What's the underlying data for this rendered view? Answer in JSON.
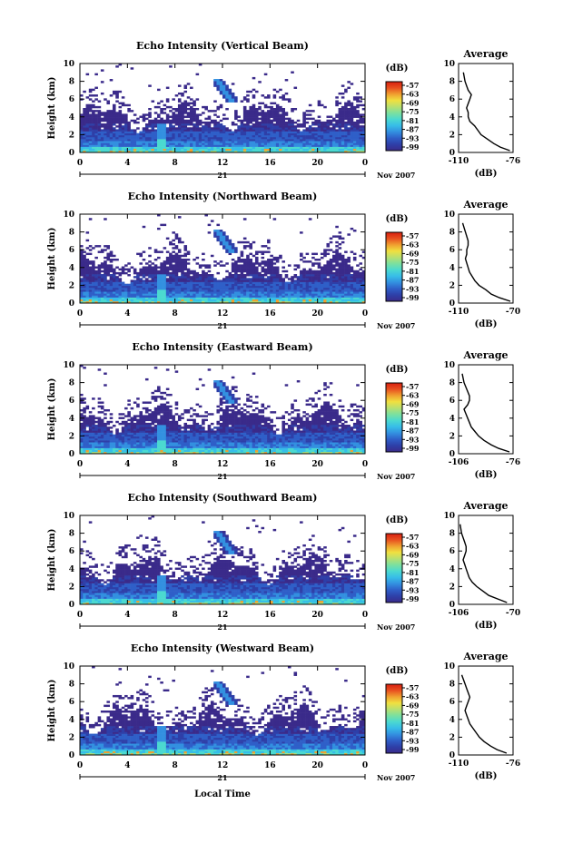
{
  "figure": {
    "x_axis_title": "Local Time",
    "day_label": "21",
    "month_label": "Nov 2007",
    "y_axis_title": "Height (km)",
    "unit_label": "(dB)",
    "average_title": "Average",
    "average_xlabel": "(dB)"
  },
  "colors": {
    "background": "#ffffff",
    "colormap": [
      "#3a2a8a",
      "#2e3fa8",
      "#2f5fc8",
      "#3390e0",
      "#37bde8",
      "#4bd9d0",
      "#7be0a0",
      "#b8e070",
      "#f0e040",
      "#f0a030",
      "#e85020",
      "#d82010"
    ]
  },
  "chart_data": [
    {
      "type": "heatmap",
      "title": "Echo Intensity (Vertical Beam)",
      "xlabel": "",
      "ylabel": "Height (km)",
      "xlim": [
        0,
        24
      ],
      "ylim": [
        0,
        10
      ],
      "x_ticks": [
        "0",
        "4",
        "8",
        "12",
        "16",
        "20",
        "0"
      ],
      "y_ticks": [
        "0",
        "2",
        "4",
        "6",
        "8",
        "10"
      ],
      "colorbar_ticks": [
        "-57",
        "-63",
        "-69",
        "-75",
        "-81",
        "-87",
        "-93",
        "-99"
      ],
      "colorbar_unit": "(dB)",
      "profile": {
        "title": "Average",
        "xlabel": "(dB)",
        "x_ticks": [
          "-110",
          "-76"
        ],
        "xlim": [
          -110,
          -76
        ],
        "height_km": [
          0.2,
          0.6,
          1.0,
          1.5,
          2.0,
          2.5,
          3.0,
          3.5,
          4.0,
          4.5,
          5.0,
          5.5,
          6.0,
          6.5,
          7.0,
          7.5,
          8.0,
          9.0
        ],
        "db": [
          -78,
          -84,
          -88,
          -92,
          -96,
          -98,
          -100,
          -103,
          -104,
          -104,
          -105,
          -104,
          -103,
          -102,
          -104,
          -105,
          -106,
          -107
        ]
      }
    },
    {
      "type": "heatmap",
      "title": "Echo Intensity (Northward Beam)",
      "xlabel": "",
      "ylabel": "Height (km)",
      "xlim": [
        0,
        24
      ],
      "ylim": [
        0,
        10
      ],
      "x_ticks": [
        "0",
        "4",
        "8",
        "12",
        "16",
        "20",
        "0"
      ],
      "y_ticks": [
        "0",
        "2",
        "4",
        "6",
        "8",
        "10"
      ],
      "colorbar_ticks": [
        "-57",
        "-63",
        "-69",
        "-75",
        "-81",
        "-87",
        "-93",
        "-99"
      ],
      "colorbar_unit": "(dB)",
      "profile": {
        "title": "Average",
        "xlabel": "(dB)",
        "x_ticks": [
          "-110",
          "-70"
        ],
        "xlim": [
          -110,
          -70
        ],
        "height_km": [
          0.2,
          0.6,
          1.0,
          1.5,
          2.0,
          2.5,
          3.0,
          3.5,
          4.0,
          4.5,
          5.0,
          5.5,
          6.0,
          6.5,
          7.0,
          7.5,
          8.0,
          9.0
        ],
        "db": [
          -72,
          -80,
          -86,
          -90,
          -95,
          -98,
          -100,
          -102,
          -103,
          -104,
          -105,
          -104,
          -104,
          -103,
          -103,
          -104,
          -105,
          -107
        ]
      }
    },
    {
      "type": "heatmap",
      "title": "Echo Intensity (Eastward Beam)",
      "xlabel": "",
      "ylabel": "Height (km)",
      "xlim": [
        0,
        24
      ],
      "ylim": [
        0,
        10
      ],
      "x_ticks": [
        "0",
        "4",
        "8",
        "12",
        "16",
        "20",
        "0"
      ],
      "y_ticks": [
        "0",
        "2",
        "4",
        "6",
        "8",
        "10"
      ],
      "colorbar_ticks": [
        "-57",
        "-63",
        "-69",
        "-75",
        "-81",
        "-87",
        "-93",
        "-99"
      ],
      "colorbar_unit": "(dB)",
      "profile": {
        "title": "Average",
        "xlabel": "(dB)",
        "x_ticks": [
          "-106",
          "-76"
        ],
        "xlim": [
          -106,
          -76
        ],
        "height_km": [
          0.2,
          0.6,
          1.0,
          1.5,
          2.0,
          2.5,
          3.0,
          3.5,
          4.0,
          4.5,
          5.0,
          5.5,
          6.0,
          6.5,
          7.0,
          7.5,
          8.0,
          9.0
        ],
        "db": [
          -78,
          -84,
          -88,
          -92,
          -95,
          -97,
          -99,
          -100,
          -101,
          -102,
          -103,
          -101,
          -100,
          -100,
          -101,
          -102,
          -103,
          -104
        ]
      }
    },
    {
      "type": "heatmap",
      "title": "Echo Intensity (Southward Beam)",
      "xlabel": "",
      "ylabel": "Height (km)",
      "xlim": [
        0,
        24
      ],
      "ylim": [
        0,
        10
      ],
      "x_ticks": [
        "0",
        "4",
        "8",
        "12",
        "16",
        "20",
        "0"
      ],
      "y_ticks": [
        "0",
        "2",
        "4",
        "6",
        "8",
        "10"
      ],
      "colorbar_ticks": [
        "-57",
        "-63",
        "-69",
        "-75",
        "-81",
        "-87",
        "-93",
        "-99"
      ],
      "colorbar_unit": "(dB)",
      "profile": {
        "title": "Average",
        "xlabel": "(dB)",
        "x_ticks": [
          "-106",
          "-70"
        ],
        "xlim": [
          -106,
          -70
        ],
        "height_km": [
          0.2,
          0.6,
          1.0,
          1.5,
          2.0,
          2.5,
          3.0,
          3.5,
          4.0,
          4.5,
          5.0,
          5.5,
          6.0,
          6.5,
          7.0,
          7.5,
          8.0,
          9.0
        ],
        "db": [
          -74,
          -80,
          -86,
          -90,
          -94,
          -97,
          -99,
          -100,
          -101,
          -102,
          -103,
          -102,
          -101,
          -101,
          -102,
          -103,
          -104,
          -105
        ]
      }
    },
    {
      "type": "heatmap",
      "title": "Echo Intensity (Westward Beam)",
      "xlabel": "Local Time",
      "ylabel": "Height (km)",
      "xlim": [
        0,
        24
      ],
      "ylim": [
        0,
        10
      ],
      "x_ticks": [
        "0",
        "4",
        "8",
        "12",
        "16",
        "20",
        "0"
      ],
      "y_ticks": [
        "0",
        "2",
        "4",
        "6",
        "8",
        "10"
      ],
      "colorbar_ticks": [
        "-57",
        "-63",
        "-69",
        "-75",
        "-81",
        "-87",
        "-93",
        "-99"
      ],
      "colorbar_unit": "(dB)",
      "profile": {
        "title": "Average",
        "xlabel": "(dB)",
        "x_ticks": [
          "-110",
          "-76"
        ],
        "xlim": [
          -110,
          -76
        ],
        "height_km": [
          0.2,
          0.6,
          1.0,
          1.5,
          2.0,
          2.5,
          3.0,
          3.5,
          4.0,
          4.5,
          5.0,
          5.5,
          6.0,
          6.5,
          7.0,
          7.5,
          8.0,
          9.0
        ],
        "db": [
          -80,
          -86,
          -90,
          -94,
          -97,
          -99,
          -101,
          -103,
          -104,
          -105,
          -106,
          -105,
          -104,
          -103,
          -104,
          -105,
          -106,
          -108
        ]
      }
    }
  ]
}
